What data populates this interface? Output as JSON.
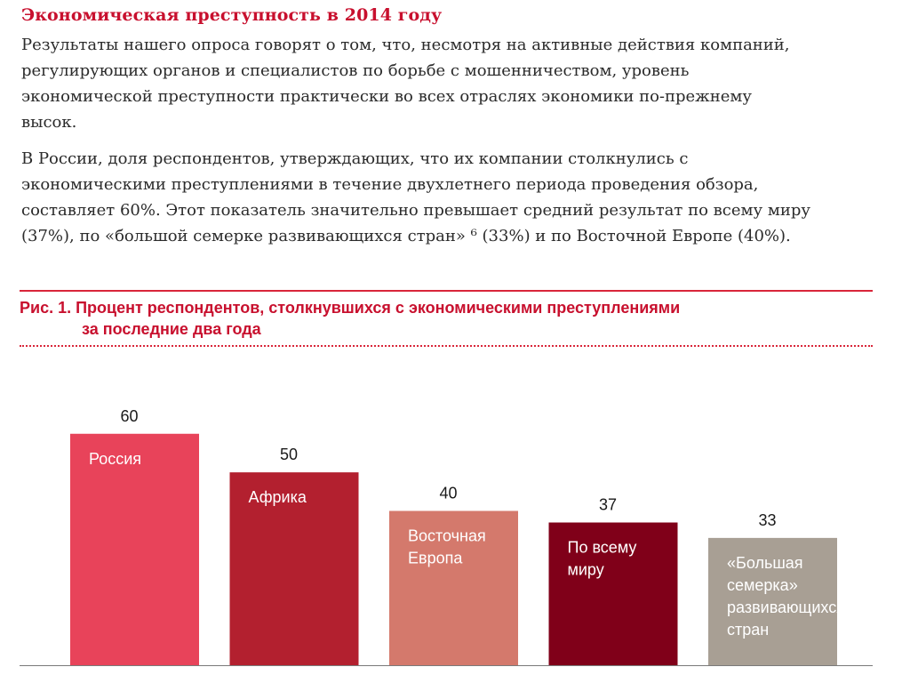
{
  "header": {
    "title": "Экономическая преступность в 2014 году"
  },
  "intro": {
    "paragraph1_lines": [
      "Результаты нашего опроса говорят о том, что, несмотря на активные действия компаний,",
      "регулирующих органов и специалистов по борьбе с мошенничеством, уровень",
      "экономической преступности практически во всех отраслях экономики по-прежнему",
      "высок."
    ],
    "paragraph2_lines": [
      "В России, доля респондентов, утверждающих, что их компании столкнулись с",
      "экономическими преступлениями в течение двухлетнего периода проведения обзора,",
      "составляет 60%. Этот показатель значительно превышает средний результат по всему миру",
      "(37%), по «большой семерке развивающихся стран» ⁶ (33%) и по Восточной Европе (40%)."
    ]
  },
  "figure": {
    "title_line1": "Рис. 1. Процент респондентов, столкнувшихся с экономическими преступлениями",
    "title_line2": "за последние два года"
  },
  "chart_data": {
    "type": "bar",
    "title": "Рис. 1. Процент респондентов, столкнувшихся с экономическими преступлениями за последние два года",
    "xlabel": "",
    "ylabel": "",
    "ylim": [
      0,
      70
    ],
    "grid": false,
    "categories": [
      [
        "Россия"
      ],
      [
        "Африка"
      ],
      [
        "Восточная",
        "Европа"
      ],
      [
        "По всему",
        "миру"
      ],
      [
        "«Большая",
        "семерка»",
        "развивающихся",
        "стран"
      ]
    ],
    "values": [
      60,
      50,
      40,
      37,
      33
    ],
    "colors": [
      "#e8435a",
      "#b3202f",
      "#d4796c",
      "#800019",
      "#a89f94"
    ],
    "value_label_color": "#1a1a1a",
    "bar_label_color": "#ffffff"
  }
}
